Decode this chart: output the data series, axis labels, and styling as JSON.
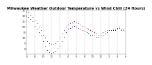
{
  "title": "Milwaukee Weather Outdoor Temperature vs Wind Chill (24 Hours)",
  "title_fontsize": 3.8,
  "background_color": "#ffffff",
  "grid_color": "#888888",
  "ylim": [
    -5,
    35
  ],
  "xlim": [
    0,
    24
  ],
  "ylabel_fontsize": 2.8,
  "xlabel_fontsize": 2.8,
  "temp_color": "#cc0000",
  "wind_color": "#0000cc",
  "marker_size": 0.5,
  "temp_x": [
    0.0,
    0.5,
    1.0,
    1.5,
    2.0,
    2.5,
    3.0,
    3.5,
    4.0,
    4.5,
    5.0,
    5.5,
    6.0,
    6.5,
    7.0,
    7.5,
    8.0,
    8.5,
    9.0,
    9.5,
    10.0,
    10.5,
    11.0,
    11.5,
    12.0,
    12.5,
    13.0,
    13.5,
    14.0,
    14.5,
    15.0,
    15.5,
    16.0,
    16.5,
    17.0,
    17.5,
    18.0,
    18.5,
    19.0,
    19.5,
    20.0,
    20.5,
    21.0,
    21.5,
    22.0,
    22.5,
    23.0,
    23.5
  ],
  "temp_y": [
    34,
    33,
    31,
    29,
    26,
    23,
    20,
    17,
    13,
    10,
    7,
    5,
    4,
    4,
    5,
    7,
    10,
    14,
    17,
    20,
    22,
    23,
    24,
    25,
    24,
    23,
    22,
    21,
    20,
    19,
    18,
    17,
    16,
    15,
    14,
    13,
    14,
    15,
    16,
    17,
    17,
    17,
    18,
    18,
    19,
    20,
    18,
    18
  ],
  "wind_x": [
    0.0,
    0.5,
    1.0,
    1.5,
    2.0,
    2.5,
    3.0,
    3.5,
    4.0,
    4.5,
    5.0,
    5.5,
    6.0,
    6.5,
    7.0,
    7.5,
    8.0,
    8.5,
    9.0,
    9.5,
    10.0,
    10.5,
    11.0,
    11.5,
    12.0,
    12.5,
    13.0,
    13.5,
    14.0,
    14.5,
    15.0,
    15.5,
    16.0,
    16.5,
    17.0,
    17.5,
    18.0,
    18.5,
    19.0,
    19.5,
    20.0,
    20.5,
    21.0,
    21.5,
    22.0,
    22.5,
    23.0,
    23.5
  ],
  "wind_y": [
    30,
    29,
    27,
    25,
    21,
    18,
    15,
    12,
    7,
    3,
    -1,
    -3,
    -4,
    -3,
    -2,
    0,
    3,
    7,
    11,
    15,
    18,
    19,
    20,
    21,
    20,
    19,
    18,
    17,
    16,
    15,
    14,
    13,
    13,
    12,
    11,
    11,
    12,
    13,
    14,
    15,
    17,
    17,
    17,
    17,
    18,
    19,
    17,
    17
  ],
  "ytick_vals": [
    0,
    5,
    10,
    15,
    20,
    25,
    30,
    35
  ],
  "xtick_vals": [
    0,
    2,
    4,
    6,
    8,
    10,
    12,
    14,
    16,
    18,
    20,
    22,
    24
  ],
  "xtick_labels": [
    "6",
    "8",
    "10",
    "12",
    "2",
    "4",
    "6",
    "8",
    "10",
    "12",
    "2",
    "4",
    "6"
  ],
  "vgrid_positions": [
    0,
    2,
    4,
    6,
    8,
    10,
    12,
    14,
    16,
    18,
    20,
    22,
    24
  ]
}
